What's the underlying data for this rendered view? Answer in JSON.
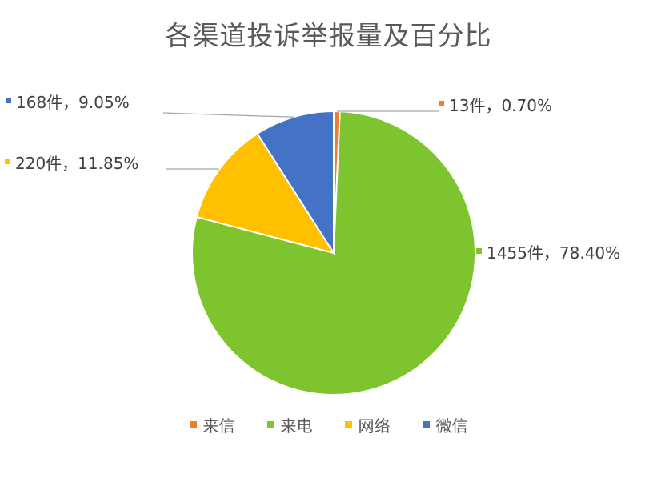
{
  "chart_data": {
    "type": "pie",
    "title": "各渠道投诉举报量及百分比",
    "categories": [
      "来信",
      "来电",
      "网络",
      "微信"
    ],
    "values": [
      13,
      1455,
      220,
      168
    ],
    "percents": [
      0.7,
      78.4,
      11.85,
      9.05
    ],
    "data_labels": [
      "13件，0.70%",
      "1455件，78.40%",
      "220件，11.85%",
      "168件，9.05%"
    ],
    "colors": [
      "#ED7D31",
      "#7DC42E",
      "#FFC000",
      "#4472C4"
    ],
    "legend_position": "bottom",
    "start_angle_deg": 0,
    "direction": "clockwise"
  }
}
